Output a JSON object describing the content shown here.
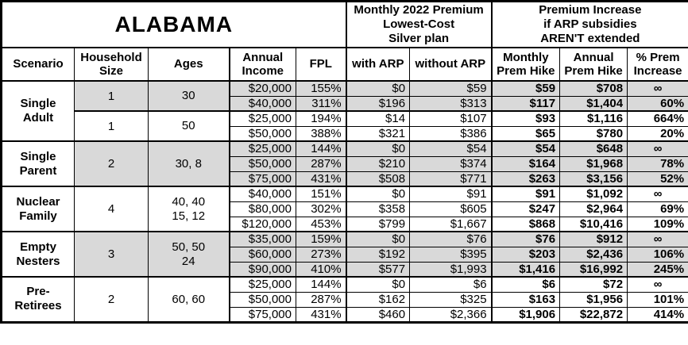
{
  "table": {
    "title": "ALABAMA",
    "premium_header": "Monthly 2022 Premium\nLowest-Cost\nSilver plan",
    "increase_header": "Premium Increase\nif ARP subsidies\nAREN'T extended",
    "columns": {
      "scenario": "Scenario",
      "household_size": "Household\nSize",
      "ages": "Ages",
      "annual_income": "Annual\nIncome",
      "fpl": "FPL",
      "with_arp": "with ARP",
      "without_arp": "without ARP",
      "monthly_hike": "Monthly\nPrem Hike",
      "annual_hike": "Annual\nPrem Hike",
      "pct_increase": "% Prem\nIncrease"
    },
    "colors": {
      "shaded_row": "#d9d9d9",
      "border": "#000000",
      "background": "#ffffff"
    },
    "infinity_symbol": "∞"
  },
  "scenarios": [
    {
      "name": "Single\nAdult",
      "subgroups": [
        {
          "size": "1",
          "ages": "30",
          "shaded": true,
          "rows": [
            {
              "income": "$20,000",
              "fpl": "155%",
              "with_arp": "$0",
              "without_arp": "$59",
              "monthly_hike": "$59",
              "annual_hike": "$708",
              "pct_increase": "∞"
            },
            {
              "income": "$40,000",
              "fpl": "311%",
              "with_arp": "$196",
              "without_arp": "$313",
              "monthly_hike": "$117",
              "annual_hike": "$1,404",
              "pct_increase": "60%"
            }
          ]
        },
        {
          "size": "1",
          "ages": "50",
          "shaded": false,
          "rows": [
            {
              "income": "$25,000",
              "fpl": "194%",
              "with_arp": "$14",
              "without_arp": "$107",
              "monthly_hike": "$93",
              "annual_hike": "$1,116",
              "pct_increase": "664%"
            },
            {
              "income": "$50,000",
              "fpl": "388%",
              "with_arp": "$321",
              "without_arp": "$386",
              "monthly_hike": "$65",
              "annual_hike": "$780",
              "pct_increase": "20%"
            }
          ]
        }
      ]
    },
    {
      "name": "Single\nParent",
      "subgroups": [
        {
          "size": "2",
          "ages": "30, 8",
          "shaded": true,
          "rows": [
            {
              "income": "$25,000",
              "fpl": "144%",
              "with_arp": "$0",
              "without_arp": "$54",
              "monthly_hike": "$54",
              "annual_hike": "$648",
              "pct_increase": "∞"
            },
            {
              "income": "$50,000",
              "fpl": "287%",
              "with_arp": "$210",
              "without_arp": "$374",
              "monthly_hike": "$164",
              "annual_hike": "$1,968",
              "pct_increase": "78%"
            },
            {
              "income": "$75,000",
              "fpl": "431%",
              "with_arp": "$508",
              "without_arp": "$771",
              "monthly_hike": "$263",
              "annual_hike": "$3,156",
              "pct_increase": "52%"
            }
          ]
        }
      ]
    },
    {
      "name": "Nuclear\nFamily",
      "subgroups": [
        {
          "size": "4",
          "ages": "40, 40\n15, 12",
          "shaded": false,
          "rows": [
            {
              "income": "$40,000",
              "fpl": "151%",
              "with_arp": "$0",
              "without_arp": "$91",
              "monthly_hike": "$91",
              "annual_hike": "$1,092",
              "pct_increase": "∞"
            },
            {
              "income": "$80,000",
              "fpl": "302%",
              "with_arp": "$358",
              "without_arp": "$605",
              "monthly_hike": "$247",
              "annual_hike": "$2,964",
              "pct_increase": "69%"
            },
            {
              "income": "$120,000",
              "fpl": "453%",
              "with_arp": "$799",
              "without_arp": "$1,667",
              "monthly_hike": "$868",
              "annual_hike": "$10,416",
              "pct_increase": "109%"
            }
          ]
        }
      ]
    },
    {
      "name": "Empty\nNesters",
      "subgroups": [
        {
          "size": "3",
          "ages": "50, 50\n24",
          "shaded": true,
          "rows": [
            {
              "income": "$35,000",
              "fpl": "159%",
              "with_arp": "$0",
              "without_arp": "$76",
              "monthly_hike": "$76",
              "annual_hike": "$912",
              "pct_increase": "∞"
            },
            {
              "income": "$60,000",
              "fpl": "273%",
              "with_arp": "$192",
              "without_arp": "$395",
              "monthly_hike": "$203",
              "annual_hike": "$2,436",
              "pct_increase": "106%"
            },
            {
              "income": "$90,000",
              "fpl": "410%",
              "with_arp": "$577",
              "without_arp": "$1,993",
              "monthly_hike": "$1,416",
              "annual_hike": "$16,992",
              "pct_increase": "245%"
            }
          ]
        }
      ]
    },
    {
      "name": "Pre-\nRetirees",
      "subgroups": [
        {
          "size": "2",
          "ages": "60, 60",
          "shaded": false,
          "rows": [
            {
              "income": "$25,000",
              "fpl": "144%",
              "with_arp": "$0",
              "without_arp": "$6",
              "monthly_hike": "$6",
              "annual_hike": "$72",
              "pct_increase": "∞"
            },
            {
              "income": "$50,000",
              "fpl": "287%",
              "with_arp": "$162",
              "without_arp": "$325",
              "monthly_hike": "$163",
              "annual_hike": "$1,956",
              "pct_increase": "101%"
            },
            {
              "income": "$75,000",
              "fpl": "431%",
              "with_arp": "$460",
              "without_arp": "$2,366",
              "monthly_hike": "$1,906",
              "annual_hike": "$22,872",
              "pct_increase": "414%"
            }
          ]
        }
      ]
    }
  ]
}
